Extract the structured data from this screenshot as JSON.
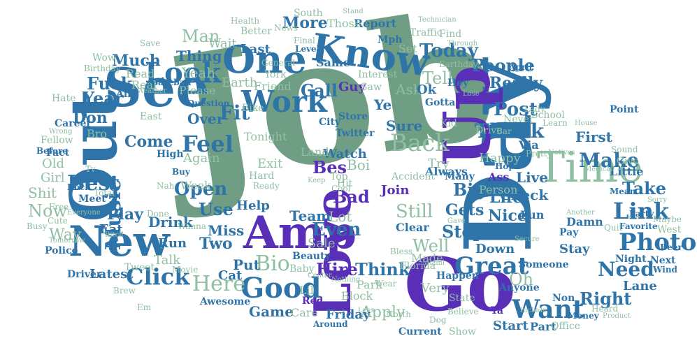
{
  "colors": {
    "background": "#ffffff",
    "sage": "#6f9e85",
    "blue": "#2f74a8",
    "violet": "#5a2fb8"
  },
  "words": {
    "job": "Job",
    "day": "Day",
    "go": "Go",
    "out": "Out",
    "see": "See",
    "up": "Up",
    "love": "Love",
    "time": "Time",
    "amp": "Amp",
    "one": "One",
    "know": "Know",
    "new": "New",
    "look": "Look",
    "work": "Work",
    "good": "Good",
    "want": "Want",
    "back": "Back",
    "thank": "Thank",
    "great": "Great",
    "photo": "Photo",
    "link": "Link",
    "bio": "Bio",
    "best": "Best",
    "music": "Music",
    "click": "Click",
    "here": "Here",
    "feel": "Feel",
    "fit": "Fit",
    "need": "Need",
    "make": "Make",
    "post": "Post",
    "right": "Right",
    "even": "Even",
    "think": "Think",
    "hire": "Hire",
    "apply": "Apply",
    "stop": "Stop",
    "gets": "Gets",
    "big": "Big",
    "still": "Still",
    "bad": "Bad",
    "team": "Team",
    "lot": "Lot",
    "use": "Use",
    "open": "Open",
    "year": "Year",
    "don": "Don",
    "now": "Now",
    "way": "Way",
    "play": "Play",
    "come": "Come",
    "take": "Take",
    "check": "Check",
    "today": "Today",
    "more": "More",
    "report": "Report",
    "people": "People",
    "really": "Really",
    "tell": "Tell",
    "sure": "Sure",
    "ask": "Ask",
    "call": "Call",
    "man": "Man",
    "thing": "Thing",
    "much": "Much",
    "fuck": "Fuck",
    "shit": "Shit",
    "old": "Old",
    "girl": "Girl",
    "latest": "Latest",
    "eat": "Eat",
    "drink": "Drink",
    "miss": "Miss",
    "two": "Two",
    "put": "Put",
    "help": "Help",
    "game": "Game",
    "friday": "Friday",
    "well": "Well",
    "nice": "Nice",
    "life": "Life",
    "live": "Live",
    "first": "First",
    "oh": "Oh",
    "start": "Start",
    "part": "Part",
    "week": "Week",
    "again": "Again",
    "over": "Over",
    "last": "Last",
    "yeah": "Yeah",
    "earth": "Earth",
    "friend": "Friend",
    "watch": "Watch",
    "exit": "Exit",
    "tonight": "Tonight",
    "guy": "Guy",
    "try": "Try",
    "happy": "Happy",
    "made": "Made",
    "stay": "Stay",
    "via": "Via",
    "lane": "Lane",
    "ye": "Ye",
    "ok": "Ok",
    "bes": "Bes",
    "boi": "Boi",
    "join": "Join",
    "sale": "Sale",
    "beauty": "Beauty",
    "person": "Person",
    "little": "Little",
    "damn": "Damn",
    "wait": "Wait",
    "better": "Better",
    "those": "Those",
    "south": "South",
    "fellow": "Fellow",
    "career": "Career",
    "meet": "Meet",
    "police": "Police",
    "driver": "Driver",
    "talk": "Talk",
    "run": "Run",
    "tweet": "Tweet",
    "awesome": "Awesome",
    "care": "Care",
    "block": "Block",
    "park": "Park",
    "very": "Very",
    "down": "Down",
    "clear": "Clear",
    "always": "Always",
    "someone": "Someone",
    "anyone": "Anyone",
    "office": "Office",
    "pay": "Pay",
    "next": "Next",
    "night": "Night",
    "west": "West",
    "favorite": "Favorite",
    "school": "School",
    "point": "Point",
    "give": "Give",
    "drive": "Drive",
    "never": "Never",
    "please": "Please",
    "read": "Read",
    "baseball": "Baseball",
    "traffic": "Traffic",
    "find": "Find",
    "set": "Set",
    "same": "Same",
    "interest": "Interest",
    "york": "York",
    "city": "City",
    "twitter": "Twitter",
    "store": "Store",
    "land": "Land",
    "hard": "Hard",
    "fun": "Fun",
    "accident": "Accident",
    "ass": "Ass",
    "cat": "Cat",
    "lil": "Lil",
    "red": "Red",
    "florida": "Florida",
    "current": "Current",
    "show": "Show",
    "happen": "Happen",
    "state": "State",
    "ya": "Ya",
    "non": "Non",
    "mph": "Mph",
    "april": "April",
    "earthday": "Earthday",
    "bike": "Bike",
    "fact": "Fact",
    "east": "East",
    "wow": "Wow",
    "before": "Before",
    "rock": "Rock",
    "busy": "Busy",
    "total": "Total",
    "buy": "Buy",
    "hit": "Hit",
    "top": "Top",
    "baby": "Baby",
    "bro": "Bro",
    "save": "Save",
    "hate": "Hate",
    "ain": "Ain",
    "real": "Real",
    "hey": "Hey",
    "bar": "Bar",
    "mean": "Mean",
    "sound": "Sound",
    "beer": "Beer",
    "wind": "Wind",
    "maybe": "Maybe",
    "heard": "Heard",
    "money": "Money",
    "cool": "Cool",
    "high": "High",
    "news": "News",
    "health": "Health",
    "final": "Final",
    "level": "Level",
    "general": "General",
    "saw": "Saw",
    "gotta": "Gotta",
    "kid": "Kid",
    "many": "Many",
    "wear": "Wear",
    "around": "Around",
    "north": "North",
    "dog": "Dog",
    "movie": "Movie",
    "hope": "Hope",
    "learn": "Learn",
    "lady": "Lady",
    "party": "Party",
    "quit": "Quit",
    "brew": "Brew",
    "cute": "Cute",
    "wanna": "Wanna",
    "done": "Done",
    "free": "Free",
    "nah": "Nah",
    "ready": "Ready",
    "question": "Question",
    "birthday": "Birthday",
    "pretty": "Pretty",
    "natives": "Natives",
    "bless": "Bless",
    "believe": "Believe",
    "include": "Include",
    "secure": "Secure",
    "technician": "Technician",
    "through": "Through",
    "sorry": "Sorry",
    "weather": "Weather",
    "nothing": "Nothing",
    "tomorrow": "Tomorrow",
    "everyone": "Everyone",
    "bitch": "Bitch",
    "house": "House",
    "medical": "Medical",
    "wrong": "Wrong",
    "keep": "Keep",
    "less": "Less",
    "lose": "Lose",
    "gave": "Gave",
    "miami": "Miami",
    "center": "Center",
    "another": "Another",
    "product": "Product",
    "stand": "Stand",
    "tv": "Tv",
    "em": "Em"
  }
}
